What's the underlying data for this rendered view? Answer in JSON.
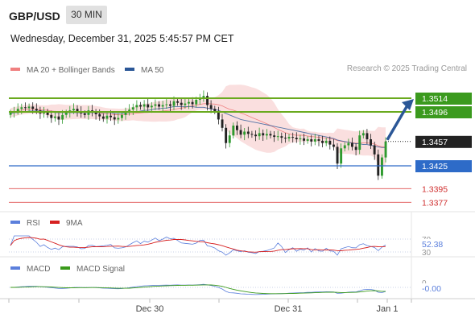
{
  "header": {
    "symbol": "GBP/USD",
    "interval": "30 MIN",
    "datetime": "Wednesday, December 31, 2025 5:45:57 PM CET",
    "copyright": "Research © 2025 Trading Central"
  },
  "legend": {
    "main": [
      {
        "label": "MA 20 + Bollinger Bands",
        "color": "#f08080"
      },
      {
        "label": "MA 50",
        "color": "#2b5797"
      }
    ],
    "rsi": [
      {
        "label": "RSI",
        "color": "#5b7fdc"
      },
      {
        "label": "9MA",
        "color": "#d62020"
      }
    ],
    "macd": [
      {
        "label": "MACD",
        "color": "#5b7fdc"
      },
      {
        "label": "MACD Signal",
        "color": "#3a9a1a"
      }
    ]
  },
  "colors": {
    "up": "#2e9a2e",
    "down": "#222222",
    "resistance": "#6aaa1e",
    "support": "#2e6bc8",
    "lowlevel": "#e05050",
    "current": "#222222",
    "bb": "#f7caca",
    "ma50": "#2b5797",
    "arrow": "#2b5797"
  },
  "chart_data": {
    "type": "candlestick",
    "y_range": [
      1.3355,
      1.3545
    ],
    "x_ticks": [
      "Dec 30",
      "Dec 31",
      "Jan 1"
    ],
    "levels": [
      {
        "label": "1.3514",
        "value": 1.3514,
        "kind": "resistance"
      },
      {
        "label": "1.3496",
        "value": 1.3496,
        "kind": "resistance"
      },
      {
        "label": "1.3457",
        "value": 1.3457,
        "kind": "current"
      },
      {
        "label": "1.3425",
        "value": 1.3425,
        "kind": "support"
      },
      {
        "label": "1.3395",
        "value": 1.3395,
        "kind": "lowlevel"
      },
      {
        "label": "1.3377",
        "value": 1.3377,
        "kind": "lowlevel"
      }
    ],
    "close": [
      1.3495,
      1.3497,
      1.35,
      1.3502,
      1.3501,
      1.3503,
      1.35,
      1.3498,
      1.3494,
      1.3496,
      1.3492,
      1.3488,
      1.349,
      1.3486,
      1.3492,
      1.3495,
      1.3498,
      1.35,
      1.3497,
      1.3494,
      1.3492,
      1.3498,
      1.3495,
      1.3493,
      1.349,
      1.3487,
      1.3491,
      1.3489,
      1.3486,
      1.3488,
      1.3492,
      1.3496,
      1.3499,
      1.3502,
      1.3505,
      1.3503,
      1.3506,
      1.3502,
      1.3504,
      1.3506,
      1.3503,
      1.3505,
      1.3506,
      1.3504,
      1.351,
      1.3508,
      1.3505,
      1.3507,
      1.3509,
      1.3506,
      1.3512,
      1.3514,
      1.3517,
      1.3505,
      1.35,
      1.3497,
      1.3486,
      1.3475,
      1.3455,
      1.3465,
      1.3478,
      1.3472,
      1.3466,
      1.347,
      1.3467,
      1.3466,
      1.3464,
      1.3468,
      1.3465,
      1.3467,
      1.3465,
      1.3463,
      1.3464,
      1.3462,
      1.3461,
      1.3463,
      1.3462,
      1.346,
      1.3461,
      1.3458,
      1.346,
      1.3457,
      1.346,
      1.3458,
      1.3455,
      1.3458,
      1.3453,
      1.345,
      1.3428,
      1.3448,
      1.3452,
      1.3455,
      1.345,
      1.3446,
      1.3465,
      1.3468,
      1.346,
      1.3452,
      1.344,
      1.3412,
      1.3436,
      1.3457
    ],
    "ma50": [
      1.3494,
      1.3495,
      1.3495,
      1.3496,
      1.3496,
      1.3497,
      1.3497,
      1.3497,
      1.3497,
      1.3497,
      1.3496,
      1.3496,
      1.3495,
      1.3495,
      1.3495,
      1.3495,
      1.3495,
      1.3495,
      1.3495,
      1.3495,
      1.3495,
      1.3495,
      1.3495,
      1.3495,
      1.3495,
      1.3495,
      1.3495,
      1.3495,
      1.3494,
      1.3494,
      1.3494,
      1.3495,
      1.3495,
      1.3496,
      1.3496,
      1.3497,
      1.3498,
      1.3498,
      1.3499,
      1.35,
      1.35,
      1.3501,
      1.3501,
      1.3502,
      1.3503,
      1.3503,
      1.3503,
      1.3503,
      1.3503,
      1.3503,
      1.3502,
      1.3502,
      1.3502,
      1.3501,
      1.35,
      1.3499,
      1.3498,
      1.3496,
      1.3494,
      1.3492,
      1.349,
      1.3488,
      1.3486,
      1.3485,
      1.3484,
      1.3483,
      1.3482,
      1.3481,
      1.348,
      1.3479,
      1.3478,
      1.3477,
      1.3476,
      1.3475,
      1.3474,
      1.3473,
      1.3472,
      1.3471,
      1.347,
      1.3469,
      1.3468,
      1.3467,
      1.3466,
      1.3465,
      1.3464,
      1.3463,
      1.3462,
      1.3461,
      1.3459,
      1.3458,
      1.3457,
      1.3456,
      1.3455,
      1.3454,
      1.3454,
      1.3453,
      1.3453,
      1.3452,
      1.3451,
      1.345,
      1.3449,
      1.3449
    ]
  },
  "rsi_panel": {
    "labels": [
      "70",
      "52.38",
      "30"
    ],
    "current": "52.38"
  },
  "macd_panel": {
    "labels": [
      "0",
      "-0.00"
    ],
    "current": "-0.00"
  }
}
